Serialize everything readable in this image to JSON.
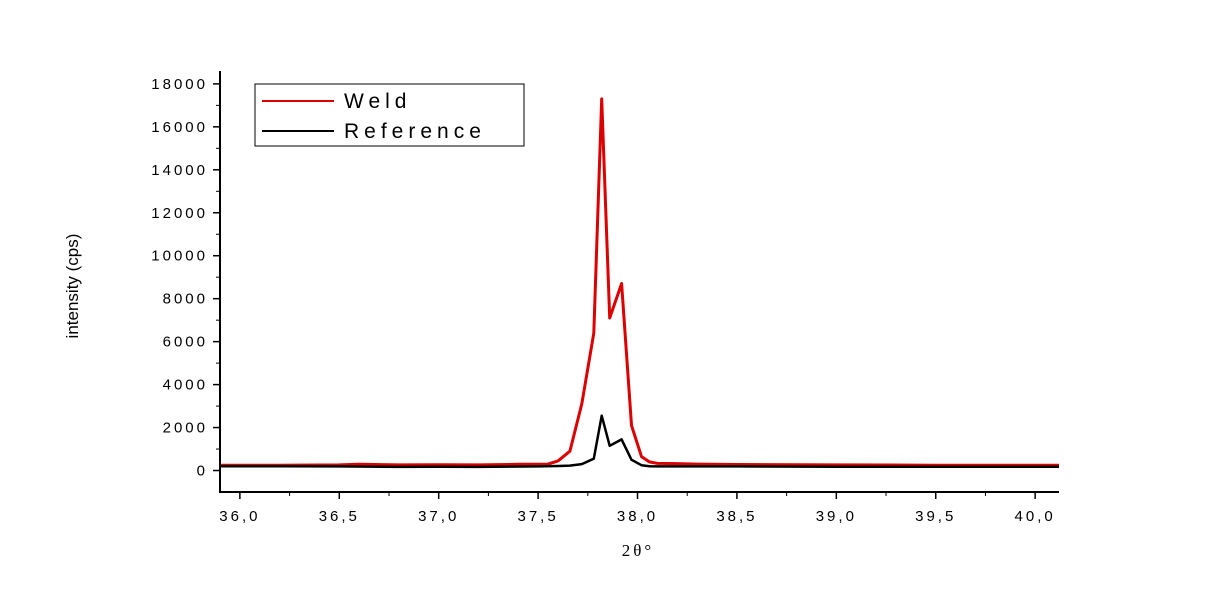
{
  "chart_data": {
    "type": "line",
    "xlabel": "2θ°",
    "ylabel": "intensity (cps)",
    "xlim": [
      35.9,
      40.12
    ],
    "ylim": [
      -1000,
      18600
    ],
    "x_ticks": [
      36.0,
      36.5,
      37.0,
      37.5,
      38.0,
      38.5,
      39.0,
      39.5,
      40.0
    ],
    "x_tick_labels": [
      "36,0",
      "36,5",
      "37,0",
      "37,5",
      "38,0",
      "38,5",
      "39,0",
      "39,5",
      "40,0"
    ],
    "y_ticks": [
      0,
      2000,
      4000,
      6000,
      8000,
      10000,
      12000,
      14000,
      16000,
      18000
    ],
    "y_tick_labels": [
      "0",
      "2000",
      "4000",
      "6000",
      "8000",
      "10000",
      "12000",
      "14000",
      "16000",
      "18000"
    ],
    "legend_position": "top-left",
    "series": [
      {
        "name": "Weld",
        "color": "#dd0000",
        "x": [
          35.9,
          36.2,
          36.5,
          36.6,
          36.8,
          37.0,
          37.2,
          37.4,
          37.55,
          37.6,
          37.66,
          37.72,
          37.78,
          37.82,
          37.86,
          37.92,
          37.97,
          38.02,
          38.06,
          38.1,
          38.2,
          38.3,
          38.5,
          39.0,
          39.5,
          40.0,
          40.12
        ],
        "y": [
          250,
          250,
          260,
          290,
          260,
          270,
          260,
          290,
          300,
          450,
          900,
          3100,
          6400,
          17300,
          7100,
          8700,
          2100,
          650,
          400,
          330,
          320,
          300,
          280,
          260,
          250,
          250,
          250
        ]
      },
      {
        "name": "Reference",
        "color": "#000000",
        "x": [
          35.9,
          36.2,
          36.5,
          36.8,
          37.0,
          37.2,
          37.5,
          37.6,
          37.66,
          37.72,
          37.78,
          37.82,
          37.86,
          37.92,
          37.97,
          38.02,
          38.06,
          38.1,
          38.3,
          38.5,
          39.0,
          39.5,
          40.0,
          40.12
        ],
        "y": [
          200,
          200,
          190,
          170,
          180,
          170,
          190,
          210,
          230,
          300,
          550,
          2550,
          1150,
          1450,
          500,
          250,
          200,
          190,
          190,
          190,
          180,
          180,
          180,
          180
        ]
      }
    ]
  }
}
